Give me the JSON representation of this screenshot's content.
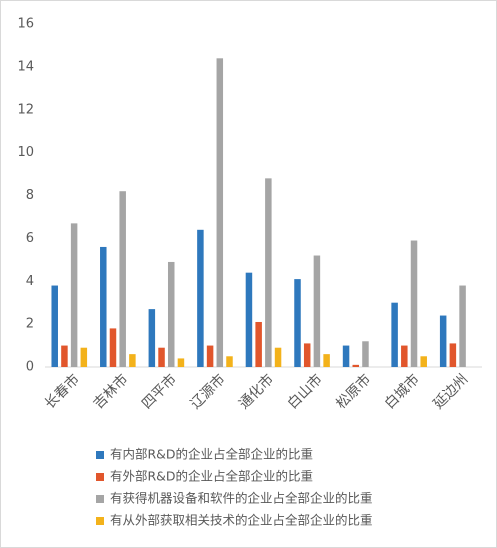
{
  "chart_data": {
    "type": "bar",
    "categories": [
      "长春市",
      "吉林市",
      "四平市",
      "辽源市",
      "通化市",
      "白山市",
      "松原市",
      "白城市",
      "延边州"
    ],
    "series": [
      {
        "name": "有内部R&D的企业占全部企业的比重",
        "color": "#2e78bd",
        "values": [
          3.8,
          5.6,
          2.7,
          6.4,
          4.4,
          4.1,
          1.0,
          3.0,
          2.4
        ]
      },
      {
        "name": "有外部R&D的企业占全部企业的比重",
        "color": "#e1562c",
        "values": [
          1.0,
          1.8,
          0.9,
          1.0,
          2.1,
          1.1,
          0.1,
          1.0,
          1.1
        ]
      },
      {
        "name": "有获得机器设备和软件的企业占全部企业的比重",
        "color": "#a5a5a5",
        "values": [
          6.7,
          8.2,
          4.9,
          14.4,
          8.8,
          5.2,
          1.2,
          5.9,
          3.8
        ]
      },
      {
        "name": "有从外部获取相关技术的企业占全部企业的比重",
        "color": "#f3b21b",
        "values": [
          0.9,
          0.6,
          0.4,
          0.5,
          0.9,
          0.6,
          0,
          0.5,
          0
        ]
      }
    ],
    "ylim": [
      0,
      16
    ],
    "yticks": [
      0,
      2,
      4,
      6,
      8,
      10,
      12,
      14,
      16
    ]
  }
}
